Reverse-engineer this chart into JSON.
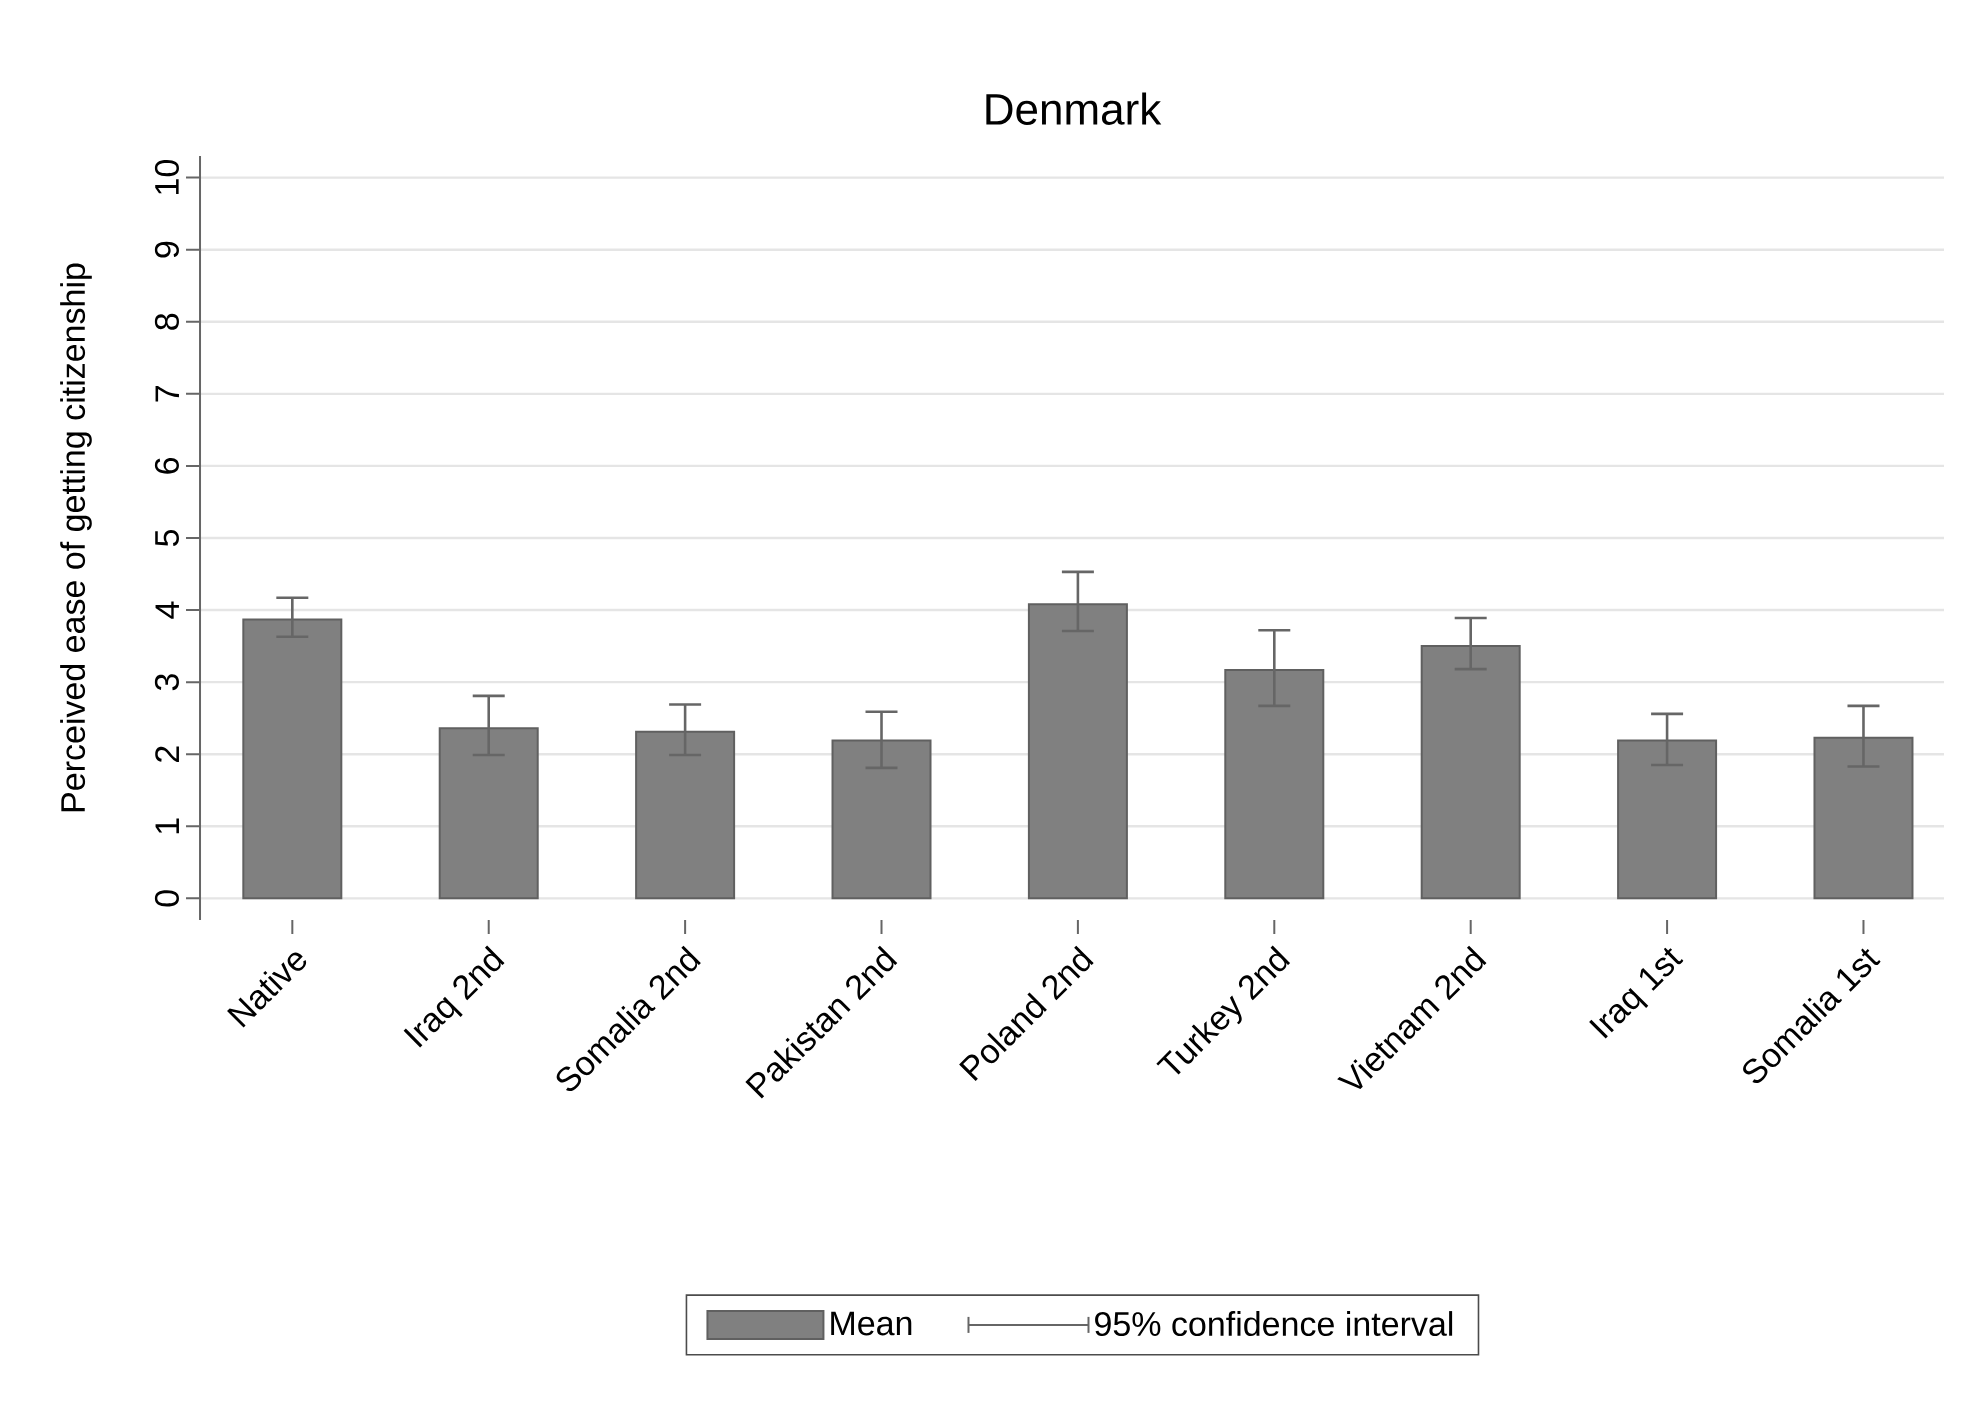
{
  "chart_data": {
    "type": "bar",
    "title": "Denmark",
    "ylabel": "Perceived ease of getting citizenship",
    "categories": [
      "Native",
      "Iraq 2nd",
      "Somalia 2nd",
      "Pakistan 2nd",
      "Poland 2nd",
      "Turkey 2nd",
      "Vietnam 2nd",
      "Iraq 1st",
      "Somalia 1st"
    ],
    "series": [
      {
        "name": "Mean",
        "color": "#808080",
        "values": [
          3.87,
          2.36,
          2.31,
          2.19,
          4.08,
          3.17,
          3.5,
          2.19,
          2.23
        ],
        "errors": [
          [
            3.63,
            4.17
          ],
          [
            1.99,
            2.81
          ],
          [
            1.99,
            2.69
          ],
          [
            1.81,
            2.59
          ],
          [
            3.71,
            4.53
          ],
          [
            2.67,
            3.72
          ],
          [
            3.18,
            3.89
          ],
          [
            1.85,
            2.56
          ],
          [
            1.83,
            2.67
          ]
        ]
      }
    ],
    "annotations": [
      "95% confidence interval"
    ],
    "ylim": [
      -0.3,
      10.3
    ],
    "yticks": [
      0,
      1,
      2,
      3,
      4,
      5,
      6,
      7,
      8,
      9,
      10
    ],
    "grid": "y",
    "legend": "bottom"
  }
}
